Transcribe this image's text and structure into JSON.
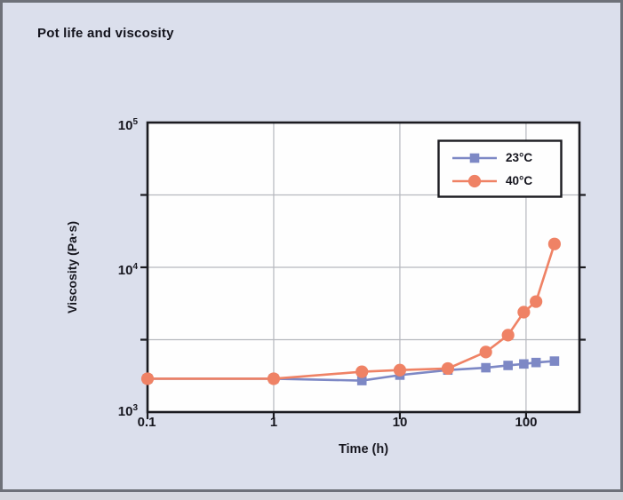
{
  "header": {
    "title": "Pot life and viscosity"
  },
  "chart_data": {
    "type": "line",
    "title": "Pot life and viscosity",
    "xlabel": "Time (h)",
    "ylabel": "Viscosity (Pa·s)",
    "xscale": "log",
    "yscale": "log",
    "xlim": [
      0.1,
      265
    ],
    "ylim": [
      1000,
      100000
    ],
    "grid": true,
    "legend_position": "top-right",
    "x_ticks": [
      {
        "value": 0.1,
        "label": "0.1"
      },
      {
        "value": 1,
        "label": "1"
      },
      {
        "value": 10,
        "label": "10"
      },
      {
        "value": 100,
        "label": "100"
      }
    ],
    "y_ticks": [
      {
        "value": 100000,
        "base": "10",
        "exp": "5"
      },
      {
        "value": 10000,
        "base": "10",
        "exp": "4"
      },
      {
        "value": 1000,
        "base": "10",
        "exp": "3"
      }
    ],
    "x_gridlines": [
      1,
      10,
      100
    ],
    "y_gridlines": [
      3162,
      10000,
      31623
    ],
    "colors": {
      "panel_background": "#dbdfec",
      "plot_background": "#fefefe",
      "gridline": "#b6b8be",
      "frame": "#1b1b20",
      "series_23c": "#7d88c5",
      "series_40c": "#ef8265"
    },
    "series": [
      {
        "name": "23°C",
        "color": "#7d88c5",
        "marker": "square",
        "x": [
          0.1,
          1,
          5,
          10,
          24,
          48,
          72,
          96,
          120,
          168
        ],
        "y": [
          1700,
          1700,
          1650,
          1800,
          1950,
          2025,
          2100,
          2150,
          2200,
          2250
        ]
      },
      {
        "name": "40°C",
        "color": "#ef8265",
        "marker": "circle",
        "x": [
          0.1,
          1,
          5,
          10,
          24,
          48,
          72,
          96,
          120,
          168
        ],
        "y": [
          1700,
          1700,
          1900,
          1950,
          2000,
          2600,
          3400,
          4900,
          5800,
          14500
        ]
      }
    ]
  }
}
